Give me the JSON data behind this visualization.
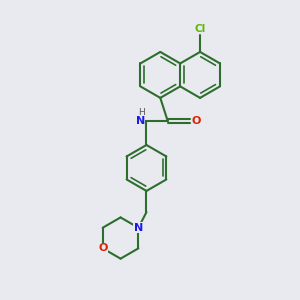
{
  "background_color": "#e8eaf0",
  "bond_color": "#2d6e2d",
  "atom_colors": {
    "Cl": "#5db800",
    "O": "#dd2200",
    "N_amide": "#1a1aee",
    "N_morpholine": "#1a1aee",
    "H": "#555555"
  },
  "figsize": [
    3.0,
    3.0
  ],
  "dpi": 100,
  "xlim": [
    0,
    10
  ],
  "ylim": [
    0,
    10
  ]
}
